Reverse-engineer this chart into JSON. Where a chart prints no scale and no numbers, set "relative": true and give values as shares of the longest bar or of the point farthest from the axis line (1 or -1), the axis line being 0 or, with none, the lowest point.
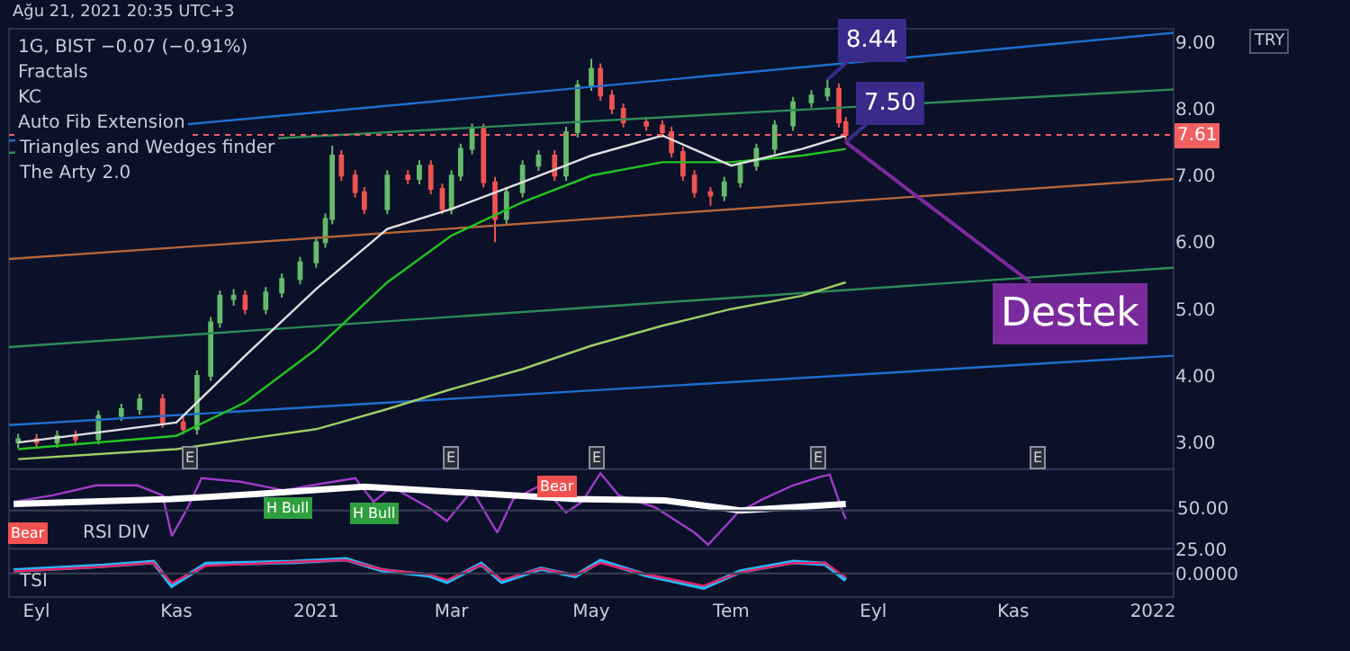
{
  "chart_data": [
    {
      "type": "candlestick",
      "title": "Ağu 21, 2021 20:35 UTC+3",
      "ylabel": "TRY",
      "xlim": [
        "2020-08-20",
        "2022-01-10"
      ],
      "ylim": [
        2.6,
        9.2
      ],
      "yticks": [
        {
          "value": 3,
          "label": "3.00"
        },
        {
          "value": 4,
          "label": "4.00"
        },
        {
          "value": 5,
          "label": "5.00"
        },
        {
          "value": 6,
          "label": "6.00"
        },
        {
          "value": 7,
          "label": "7.00"
        },
        {
          "value": 8,
          "label": "8.00"
        },
        {
          "value": 9,
          "label": "9.00"
        }
      ],
      "tick_labels": "y",
      "grid": false,
      "ref_lines": [
        {
          "axis": "y",
          "value": 7.61,
          "label": "7.61",
          "color": "#f06060",
          "line_style": "dotted"
        }
      ],
      "annotations": [
        "1G, BIST −0.07 (−0.91%)",
        "Fractals",
        "KC",
        "Auto Fib Extension",
        "Triangles and Wedges finder",
        "The Arty 2.0",
        {
          "text": "8.44",
          "x": "2021-08-12",
          "y": 8.44
        },
        {
          "text": "7.50",
          "x": "2021-08-20",
          "y": 7.5
        },
        {
          "text": "Destek",
          "x": "2021-08-20",
          "y": 7.5
        },
        {
          "text": "E",
          "x": "2020-11-07"
        },
        {
          "text": "E",
          "x": "2021-03-01"
        },
        {
          "text": "E",
          "x": "2021-05-03"
        },
        {
          "text": "E",
          "x": "2021-08-08"
        },
        {
          "text": "E",
          "x": "2021-11-12"
        }
      ],
      "series": [
        {
          "type": "line",
          "color": "#1e6fd0",
          "x": [
            "2020-08-20",
            "2022-01-10"
          ],
          "values": [
            7.52,
            9.14
          ]
        },
        {
          "type": "line",
          "color": "#2e8b57",
          "x": [
            "2020-08-20",
            "2022-01-10"
          ],
          "values": [
            7.34,
            8.29
          ]
        },
        {
          "type": "line",
          "color": "#b5653a",
          "x": [
            "2020-08-20",
            "2022-01-10"
          ],
          "values": [
            5.75,
            6.95
          ]
        },
        {
          "type": "line",
          "color": "#2e8b57",
          "x": [
            "2020-08-20",
            "2022-01-10"
          ],
          "values": [
            4.43,
            5.62
          ]
        },
        {
          "type": "line",
          "color": "#1e6fd0",
          "x": [
            "2020-08-20",
            "2022-01-10"
          ],
          "values": [
            3.26,
            4.3
          ]
        },
        {
          "type": "line",
          "color": "#9ccc65",
          "x": [
            "2020-08-24",
            "2020-11-01",
            "2020-12-01",
            "2021-01-01",
            "2021-02-01",
            "2021-03-01",
            "2021-04-01",
            "2021-05-01",
            "2021-06-01",
            "2021-07-01",
            "2021-08-01",
            "2021-08-20"
          ],
          "values": [
            2.75,
            2.9,
            3.05,
            3.2,
            3.5,
            3.8,
            4.1,
            4.45,
            4.75,
            5.0,
            5.2,
            5.4
          ]
        },
        {
          "type": "line",
          "color": "#22c422",
          "x": [
            "2020-08-24",
            "2020-11-01",
            "2020-12-01",
            "2021-01-01",
            "2021-02-01",
            "2021-03-01",
            "2021-04-01",
            "2021-05-01",
            "2021-06-01",
            "2021-07-01",
            "2021-08-01",
            "2021-08-20"
          ],
          "values": [
            2.9,
            3.1,
            3.6,
            4.4,
            5.4,
            6.1,
            6.6,
            7.0,
            7.2,
            7.2,
            7.3,
            7.4
          ]
        },
        {
          "type": "line",
          "color": "#e0e0e0",
          "x": [
            "2020-08-24",
            "2020-11-01",
            "2020-12-01",
            "2021-01-01",
            "2021-02-01",
            "2021-03-01",
            "2021-04-01",
            "2021-05-01",
            "2021-06-01",
            "2021-07-01",
            "2021-08-01",
            "2021-08-20"
          ],
          "values": [
            3.0,
            3.3,
            4.3,
            5.3,
            6.2,
            6.5,
            6.9,
            7.3,
            7.6,
            7.15,
            7.4,
            7.6
          ]
        },
        {
          "type": "candlestick",
          "x": [
            "2020-08-24",
            "2020-09-01",
            "2020-09-10",
            "2020-09-18",
            "2020-09-28",
            "2020-10-08",
            "2020-10-16",
            "2020-10-26",
            "2020-11-04",
            "2020-11-10",
            "2020-11-16",
            "2020-11-20",
            "2020-11-26",
            "2020-12-01",
            "2020-12-10",
            "2020-12-17",
            "2020-12-25",
            "2021-01-01",
            "2021-01-05",
            "2021-01-08",
            "2021-01-12",
            "2021-01-18",
            "2021-01-22",
            "2021-02-01",
            "2021-02-10",
            "2021-02-15",
            "2021-02-20",
            "2021-02-25",
            "2021-03-01",
            "2021-03-05",
            "2021-03-10",
            "2021-03-15",
            "2021-03-20",
            "2021-03-25",
            "2021-04-01",
            "2021-04-08",
            "2021-04-15",
            "2021-04-20",
            "2021-04-25",
            "2021-05-01",
            "2021-05-05",
            "2021-05-10",
            "2021-05-15",
            "2021-05-25",
            "2021-06-01",
            "2021-06-05",
            "2021-06-10",
            "2021-06-15",
            "2021-06-22",
            "2021-06-28",
            "2021-07-05",
            "2021-07-12",
            "2021-07-20",
            "2021-07-28",
            "2021-08-05",
            "2021-08-12",
            "2021-08-17",
            "2021-08-20"
          ],
          "ohlc": [
            [
              3.0,
              3.13,
              2.92,
              3.05
            ],
            [
              3.05,
              3.13,
              2.92,
              3.0
            ],
            [
              3.0,
              3.18,
              2.92,
              3.1
            ],
            [
              3.1,
              3.18,
              2.97,
              3.05
            ],
            [
              3.05,
              3.48,
              2.97,
              3.4
            ],
            [
              3.4,
              3.58,
              3.32,
              3.5
            ],
            [
              3.5,
              3.73,
              3.42,
              3.65
            ],
            [
              3.65,
              3.73,
              3.22,
              3.3
            ],
            [
              3.3,
              3.38,
              3.12,
              3.2
            ],
            [
              3.2,
              4.08,
              3.12,
              4.0
            ],
            [
              4.0,
              4.88,
              3.92,
              4.8
            ],
            [
              4.8,
              5.28,
              4.72,
              5.2
            ],
            [
              5.15,
              5.3,
              5.05,
              5.2
            ],
            [
              5.2,
              5.28,
              4.92,
              5.0
            ],
            [
              5.0,
              5.33,
              4.92,
              5.25
            ],
            [
              5.25,
              5.53,
              5.17,
              5.45
            ],
            [
              5.45,
              5.78,
              5.37,
              5.7
            ],
            [
              5.7,
              6.08,
              5.62,
              6.0
            ],
            [
              6.0,
              6.43,
              5.92,
              6.35
            ],
            [
              6.35,
              7.45,
              6.27,
              7.3
            ],
            [
              7.3,
              7.38,
              6.92,
              7.0
            ],
            [
              7.0,
              7.08,
              6.67,
              6.75
            ],
            [
              6.75,
              6.83,
              6.42,
              6.5
            ],
            [
              6.5,
              7.08,
              6.42,
              7.0
            ],
            [
              7.0,
              7.08,
              6.87,
              6.95
            ],
            [
              6.95,
              7.23,
              6.87,
              7.15
            ],
            [
              7.15,
              7.23,
              6.72,
              6.8
            ],
            [
              6.8,
              6.88,
              6.42,
              6.5
            ],
            [
              6.5,
              7.08,
              6.42,
              7.0
            ],
            [
              7.0,
              7.48,
              6.92,
              7.4
            ],
            [
              7.4,
              7.78,
              7.32,
              7.7
            ],
            [
              7.7,
              7.78,
              6.82,
              6.9
            ],
            [
              6.9,
              6.98,
              6.0,
              6.35
            ],
            [
              6.35,
              6.83,
              6.27,
              6.75
            ],
            [
              6.75,
              7.23,
              6.67,
              7.15
            ],
            [
              7.15,
              7.38,
              7.07,
              7.3
            ],
            [
              7.3,
              7.38,
              6.92,
              7.0
            ],
            [
              7.0,
              7.73,
              6.92,
              7.65
            ],
            [
              7.65,
              8.43,
              7.57,
              8.35
            ],
            [
              8.35,
              8.75,
              8.27,
              8.6
            ],
            [
              8.6,
              8.68,
              8.12,
              8.2
            ],
            [
              8.2,
              8.28,
              7.92,
              8.0
            ],
            [
              8.0,
              8.08,
              7.72,
              7.8
            ],
            [
              7.8,
              7.88,
              7.67,
              7.75
            ],
            [
              7.75,
              7.83,
              7.57,
              7.65
            ],
            [
              7.65,
              7.73,
              7.27,
              7.35
            ],
            [
              7.35,
              7.43,
              6.92,
              7.0
            ],
            [
              7.0,
              7.08,
              6.67,
              6.75
            ],
            [
              6.75,
              6.83,
              6.55,
              6.7
            ],
            [
              6.7,
              6.98,
              6.62,
              6.9
            ],
            [
              6.9,
              7.23,
              6.82,
              7.15
            ],
            [
              7.15,
              7.48,
              7.07,
              7.4
            ],
            [
              7.4,
              7.83,
              7.32,
              7.75
            ],
            [
              7.75,
              8.18,
              7.67,
              8.1
            ],
            [
              8.1,
              8.28,
              8.02,
              8.2
            ],
            [
              8.2,
              8.44,
              8.12,
              8.3
            ],
            [
              8.3,
              8.38,
              7.72,
              7.8
            ],
            [
              7.8,
              7.88,
              7.5,
              7.61
            ]
          ]
        }
      ]
    },
    {
      "type": "line",
      "xlim": [
        "2020-08-20",
        "2022-01-10"
      ],
      "relative": true,
      "tick_labels": false,
      "ref_lines": [
        {
          "axis": "y",
          "value": 0.48,
          "color": "#3a4055",
          "line_style": "solid"
        }
      ],
      "annotations": [
        "RSI DIV",
        "50.00",
        {
          "text": "Bear",
          "x": "2020-08-28",
          "y": 0.15
        },
        {
          "text": "H Bull",
          "x": "2020-12-20",
          "y": 0.52
        },
        {
          "text": "H Bull",
          "x": "2021-01-26",
          "y": 0.45
        },
        {
          "text": "Bear",
          "x": "2021-04-16",
          "y": 0.81
        }
      ],
      "series": [
        {
          "color": "#a03cc8",
          "x": [
            "2020-08-22",
            "2020-09-08",
            "2020-09-27",
            "2020-10-15",
            "2020-10-26",
            "2020-10-30",
            "2020-11-06",
            "2020-11-12",
            "2020-11-29",
            "2020-12-18",
            "2020-12-30",
            "2021-01-18",
            "2021-01-26",
            "2021-02-03",
            "2021-02-19",
            "2021-02-27",
            "2021-03-10",
            "2021-03-21",
            "2021-03-28",
            "2021-04-09",
            "2021-04-20",
            "2021-04-27",
            "2021-05-05",
            "2021-05-13",
            "2021-05-29",
            "2021-06-15",
            "2021-06-21",
            "2021-07-04",
            "2021-07-15",
            "2021-07-28",
            "2021-08-09",
            "2021-08-13",
            "2021-08-18",
            "2021-08-20"
          ],
          "values": [
            0.6,
            0.69,
            0.83,
            0.83,
            0.69,
            0.12,
            0.52,
            0.93,
            0.88,
            0.76,
            0.83,
            0.93,
            0.6,
            0.81,
            0.52,
            0.33,
            0.76,
            0.17,
            0.64,
            0.83,
            0.45,
            0.6,
            1,
            0.69,
            0.52,
            0.17,
            0,
            0.45,
            0.64,
            0.83,
            0.95,
            0.98,
            0.52,
            0.36
          ]
        },
        {
          "color": "#ffffff",
          "x": [
            "2020-08-22",
            "2020-10-30",
            "2020-12-07",
            "2021-01-22",
            "2021-03-17",
            "2021-04-24",
            "2021-06-02",
            "2021-07-05",
            "2021-08-20"
          ],
          "values": [
            0.57,
            0.64,
            0.71,
            0.81,
            0.71,
            0.64,
            0.62,
            0.48,
            0.57
          ]
        }
      ]
    },
    {
      "type": "line",
      "xlim": [
        "2020-08-20",
        "2022-01-10"
      ],
      "ylim": [
        -25,
        26
      ],
      "yticks": [
        {
          "value": 25,
          "label": "25.00"
        },
        {
          "value": 0,
          "label": "0.0000"
        }
      ],
      "ref_lines": [
        {
          "axis": "y",
          "value": 0,
          "color": "#3a4055",
          "line_style": "solid"
        }
      ],
      "xticks": [
        {
          "value": "2020-09-01",
          "label": "Eyl"
        },
        {
          "value": "2020-11-01",
          "label": "Kas"
        },
        {
          "value": "2021-01-01",
          "label": "2021"
        },
        {
          "value": "2021-03-01",
          "label": "Mar"
        },
        {
          "value": "2021-05-01",
          "label": "May"
        },
        {
          "value": "2021-07-01",
          "label": "Tem"
        },
        {
          "value": "2021-09-01",
          "label": "Eyl"
        },
        {
          "value": "2021-11-01",
          "label": "Kas"
        },
        {
          "value": "2022-01-01",
          "label": "2022"
        }
      ],
      "annotations": [
        "TSI"
      ],
      "series": [
        {
          "color": "#29b6f6",
          "x": [
            "2020-08-22",
            "2020-09-30",
            "2020-10-22",
            "2020-10-30",
            "2020-11-14",
            "2020-12-22",
            "2021-01-14",
            "2021-01-30",
            "2021-02-19",
            "2021-02-27",
            "2021-03-14",
            "2021-03-23",
            "2021-04-09",
            "2021-04-24",
            "2021-05-05",
            "2021-05-25",
            "2021-06-19",
            "2021-07-05",
            "2021-07-28",
            "2021-08-11",
            "2021-08-20"
          ],
          "values": [
            3,
            8,
            12,
            -13,
            10,
            12,
            15,
            3,
            -2,
            -9,
            10,
            -9,
            5,
            -3,
            13,
            -2,
            -15,
            2,
            12,
            10,
            -7
          ]
        },
        {
          "color": "#e91e63",
          "x": [
            "2020-08-22",
            "2020-09-30",
            "2020-10-22",
            "2020-10-30",
            "2020-11-14",
            "2020-12-22",
            "2021-01-14",
            "2021-01-30",
            "2021-02-19",
            "2021-02-27",
            "2021-03-14",
            "2021-03-23",
            "2021-04-09",
            "2021-04-24",
            "2021-05-05",
            "2021-05-25",
            "2021-06-19",
            "2021-07-05",
            "2021-07-28",
            "2021-08-11",
            "2021-08-20"
          ],
          "values": [
            2,
            7,
            11,
            -10,
            8,
            12,
            14,
            4,
            -1,
            -7,
            9,
            -7,
            5,
            -2,
            11,
            -1,
            -13,
            1,
            11,
            11,
            -4
          ]
        }
      ]
    }
  ]
}
